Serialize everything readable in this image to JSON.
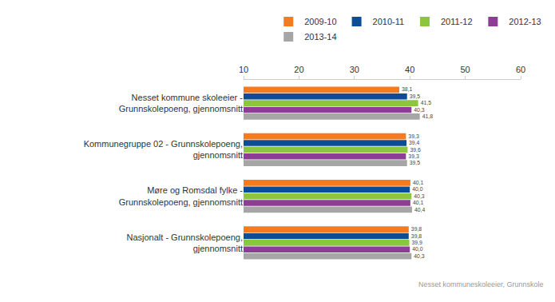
{
  "chart_data": {
    "type": "bar",
    "orientation": "horizontal",
    "categories": [
      "Nesset kommune skoleeier - Grunnskolepoeng, gjennomsnitt",
      "Kommunegruppe 02 - Grunnskolepoeng, gjennomsnitt",
      "Møre og Romsdal fylke - Grunnskolepoeng, gjennomsnitt",
      "Nasjonalt - Grunnskolepoeng, gjennomsnitt"
    ],
    "series": [
      {
        "name": "2009-10",
        "color": "#f47b20",
        "values": [
          38.1,
          39.3,
          40.1,
          39.8
        ],
        "value_labels": [
          "38,1",
          "39,3",
          "40,1",
          "39,8"
        ]
      },
      {
        "name": "2010-11",
        "color": "#0e4c96",
        "values": [
          39.5,
          39.4,
          40.0,
          39.8
        ],
        "value_labels": [
          "39,5",
          "39,4",
          "40,0",
          "39,8"
        ]
      },
      {
        "name": "2011-12",
        "color": "#8cc63e",
        "values": [
          41.5,
          39.6,
          40.3,
          39.9
        ],
        "value_labels": [
          "41,5",
          "39,6",
          "40,3",
          "39,9"
        ]
      },
      {
        "name": "2012-13",
        "color": "#8e3d96",
        "values": [
          40.3,
          39.3,
          40.1,
          40.0
        ],
        "value_labels": [
          "40,3",
          "39,3",
          "40,1",
          "40,0"
        ]
      },
      {
        "name": "2013-14",
        "color": "#a6a6a6",
        "values": [
          41.8,
          39.5,
          40.4,
          40.3
        ],
        "value_labels": [
          "41,8",
          "39,5",
          "40,4",
          "40,3"
        ]
      }
    ],
    "xlim": [
      10,
      60
    ],
    "xticks": [
      10,
      20,
      30,
      40,
      50,
      60
    ],
    "grid": false,
    "legend": "top",
    "data_labels": true,
    "annotations": [
      "Nesset kommuneskoleeier, Grunnskole"
    ]
  }
}
